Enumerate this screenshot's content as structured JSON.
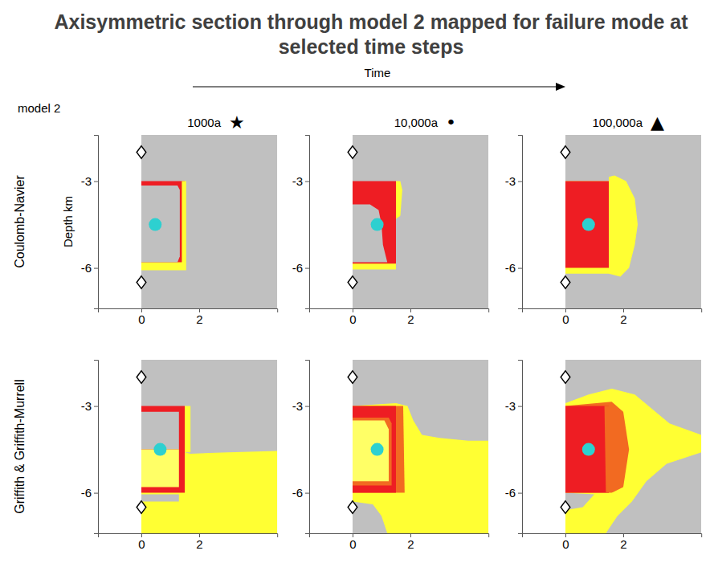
{
  "figure": {
    "title": "Axisymmetric section through model 2 mapped for failure mode at selected time steps",
    "time_label": "Time",
    "model_label": "model 2",
    "columns": [
      {
        "label": "1000a",
        "symbol": "★"
      },
      {
        "label": "10,000a",
        "symbol": "•"
      },
      {
        "label": "100,000a",
        "symbol": "▲"
      }
    ],
    "rows": [
      "Coulomb-Navier",
      "Griffith & Griffith-Murrell"
    ]
  },
  "chart_data": [
    {
      "type": "region_map",
      "ylabel": "Depth km",
      "xlim": [
        -1.5,
        4.7
      ],
      "ylim": [
        -7.4,
        -1.4
      ],
      "xticks": [
        0,
        2
      ],
      "yticks": [
        -3,
        -6
      ],
      "regions": [
        {
          "color": "#c0c0c0",
          "points": [
            [
              0,
              -7.4
            ],
            [
              4.7,
              -7.4
            ],
            [
              4.7,
              -1.4
            ],
            [
              0,
              -1.4
            ]
          ]
        },
        {
          "color": "#ee1d23",
          "points": [
            [
              0,
              -3
            ],
            [
              1.5,
              -3
            ],
            [
              1.5,
              -6
            ],
            [
              0,
              -6
            ]
          ]
        },
        {
          "color": "#ffff33",
          "points": [
            [
              1.4,
              -3
            ],
            [
              1.55,
              -3
            ],
            [
              1.55,
              -6.08
            ],
            [
              0,
              -6.08
            ],
            [
              0,
              -5.8
            ],
            [
              1.4,
              -5.8
            ]
          ]
        },
        {
          "color": "#c0c0c0",
          "points": [
            [
              0,
              -3.15
            ],
            [
              1.25,
              -3.15
            ],
            [
              1.33,
              -3.3
            ],
            [
              1.33,
              -5.6
            ],
            [
              1.25,
              -5.8
            ],
            [
              0,
              -5.8
            ]
          ]
        }
      ],
      "markers": [
        [
          0,
          -2.0
        ],
        [
          0,
          -6.5
        ]
      ],
      "dot": [
        0.48,
        -4.5
      ]
    },
    {
      "type": "region_map",
      "xlim": [
        -1.5,
        4.7
      ],
      "ylim": [
        -7.4,
        -1.4
      ],
      "xticks": [
        0,
        2
      ],
      "yticks": [
        -3,
        -6
      ],
      "regions": [
        {
          "color": "#c0c0c0",
          "points": [
            [
              0,
              -7.4
            ],
            [
              4.7,
              -7.4
            ],
            [
              4.7,
              -1.4
            ],
            [
              0,
              -1.4
            ]
          ]
        },
        {
          "color": "#ffff33",
          "points": [
            [
              1.5,
              -3
            ],
            [
              1.65,
              -3
            ],
            [
              1.72,
              -3.3
            ],
            [
              1.65,
              -4.2
            ],
            [
              1.5,
              -4.3
            ]
          ]
        },
        {
          "color": "#ee1d23",
          "points": [
            [
              0,
              -3
            ],
            [
              1.5,
              -3
            ],
            [
              1.5,
              -6
            ],
            [
              0,
              -6
            ]
          ]
        },
        {
          "color": "#c0c0c0",
          "points": [
            [
              0,
              -3.8
            ],
            [
              0.6,
              -3.8
            ],
            [
              0.9,
              -4.0
            ],
            [
              1.0,
              -4.5
            ],
            [
              1.05,
              -5.2
            ],
            [
              1.2,
              -5.8
            ],
            [
              0,
              -5.8
            ]
          ]
        },
        {
          "color": "#ffff33",
          "points": [
            [
              0,
              -5.85
            ],
            [
              1.5,
              -5.85
            ],
            [
              1.5,
              -6.05
            ],
            [
              0,
              -6.05
            ]
          ]
        }
      ],
      "markers": [
        [
          0,
          -2.0
        ],
        [
          0,
          -6.5
        ]
      ],
      "dot": [
        0.85,
        -4.5
      ]
    },
    {
      "type": "region_map",
      "xlim": [
        -1.5,
        4.7
      ],
      "ylim": [
        -7.4,
        -1.4
      ],
      "xticks": [
        0,
        2
      ],
      "yticks": [
        -3,
        -6
      ],
      "regions": [
        {
          "color": "#c0c0c0",
          "points": [
            [
              0,
              -7.4
            ],
            [
              4.7,
              -7.4
            ],
            [
              4.7,
              -1.4
            ],
            [
              0,
              -1.4
            ]
          ]
        },
        {
          "color": "#ffff33",
          "points": [
            [
              0,
              -6.2
            ],
            [
              1.5,
              -6.2
            ],
            [
              1.9,
              -6.3
            ],
            [
              2.2,
              -6.0
            ],
            [
              2.4,
              -5.2
            ],
            [
              2.5,
              -4.5
            ],
            [
              2.4,
              -3.6
            ],
            [
              2.1,
              -3.0
            ],
            [
              1.7,
              -2.8
            ],
            [
              1.5,
              -2.85
            ],
            [
              1.5,
              -3
            ],
            [
              0,
              -3
            ]
          ]
        },
        {
          "color": "#ee1d23",
          "points": [
            [
              0,
              -3
            ],
            [
              1.5,
              -3
            ],
            [
              1.5,
              -6
            ],
            [
              0,
              -6
            ]
          ]
        }
      ],
      "markers": [
        [
          0,
          -2.0
        ],
        [
          0,
          -6.5
        ]
      ],
      "dot": [
        0.8,
        -4.5
      ]
    },
    {
      "type": "region_map",
      "xlim": [
        -1.5,
        4.7
      ],
      "ylim": [
        -7.4,
        -1.4
      ],
      "xticks": [
        0,
        2
      ],
      "yticks": [
        -3,
        -6
      ],
      "regions": [
        {
          "color": "#c0c0c0",
          "points": [
            [
              0,
              -7.4
            ],
            [
              4.7,
              -7.4
            ],
            [
              4.7,
              -1.4
            ],
            [
              0,
              -1.4
            ]
          ]
        },
        {
          "color": "#ffff33",
          "points": [
            [
              0,
              -4.6
            ],
            [
              1.5,
              -4.6
            ],
            [
              1.7,
              -4.65
            ],
            [
              3,
              -4.6
            ],
            [
              4.7,
              -4.55
            ],
            [
              4.7,
              -7.4
            ],
            [
              0,
              -7.4
            ]
          ]
        },
        {
          "color": "#c0c0c0",
          "points": [
            [
              0,
              -6.05
            ],
            [
              1.3,
              -6.05
            ],
            [
              1.3,
              -6.3
            ],
            [
              0,
              -6.3
            ]
          ]
        },
        {
          "color": "#ffff33",
          "points": [
            [
              1.5,
              -3
            ],
            [
              1.7,
              -3
            ],
            [
              1.7,
              -4.6
            ],
            [
              1.5,
              -4.6
            ]
          ]
        },
        {
          "color": "#ee1d23",
          "points": [
            [
              0,
              -3
            ],
            [
              1.5,
              -3
            ],
            [
              1.5,
              -6
            ],
            [
              0,
              -6
            ]
          ]
        },
        {
          "color": "#c0c0c0",
          "points": [
            [
              0,
              -3.2
            ],
            [
              1.3,
              -3.2
            ],
            [
              1.3,
              -4.5
            ],
            [
              0,
              -4.5
            ]
          ]
        },
        {
          "color": "#ffff66",
          "points": [
            [
              0,
              -4.5
            ],
            [
              1.3,
              -4.5
            ],
            [
              1.3,
              -5.8
            ],
            [
              0,
              -5.8
            ]
          ]
        }
      ],
      "markers": [
        [
          0,
          -2.0
        ],
        [
          0,
          -6.5
        ]
      ],
      "dot": [
        0.65,
        -4.5
      ]
    },
    {
      "type": "region_map",
      "xlim": [
        -1.5,
        4.7
      ],
      "ylim": [
        -7.4,
        -1.4
      ],
      "xticks": [
        0,
        2
      ],
      "yticks": [
        -3,
        -6
      ],
      "regions": [
        {
          "color": "#c0c0c0",
          "points": [
            [
              0,
              -7.4
            ],
            [
              4.7,
              -7.4
            ],
            [
              4.7,
              -1.4
            ],
            [
              0,
              -1.4
            ]
          ]
        },
        {
          "color": "#ffff33",
          "points": [
            [
              0,
              -3
            ],
            [
              1.5,
              -2.9
            ],
            [
              1.9,
              -3.0
            ],
            [
              2.1,
              -3.5
            ],
            [
              2.4,
              -4.0
            ],
            [
              3,
              -4.1
            ],
            [
              4,
              -4.2
            ],
            [
              4.7,
              -4.2
            ],
            [
              4.7,
              -7.4
            ],
            [
              1.2,
              -7.4
            ],
            [
              1.0,
              -6.8
            ],
            [
              0.7,
              -6.4
            ],
            [
              0,
              -6.3
            ]
          ]
        },
        {
          "color": "#f26a21",
          "points": [
            [
              0,
              -3
            ],
            [
              1.75,
              -3
            ],
            [
              1.8,
              -6
            ],
            [
              0,
              -6
            ]
          ]
        },
        {
          "color": "#ee1d23",
          "points": [
            [
              0,
              -3
            ],
            [
              1.5,
              -3
            ],
            [
              1.5,
              -6
            ],
            [
              0,
              -6
            ]
          ]
        },
        {
          "color": "#f26a21",
          "points": [
            [
              0,
              -3.4
            ],
            [
              1.25,
              -3.4
            ],
            [
              1.35,
              -3.6
            ],
            [
              1.35,
              -5.75
            ],
            [
              0,
              -5.75
            ]
          ]
        },
        {
          "color": "#ffff66",
          "points": [
            [
              0,
              -3.5
            ],
            [
              1.1,
              -3.5
            ],
            [
              1.25,
              -3.8
            ],
            [
              1.25,
              -5.6
            ],
            [
              0,
              -5.6
            ]
          ]
        }
      ],
      "markers": [
        [
          0,
          -2.0
        ],
        [
          0,
          -6.5
        ]
      ],
      "dot": [
        0.85,
        -4.5
      ]
    },
    {
      "type": "region_map",
      "xlim": [
        -1.5,
        4.7
      ],
      "ylim": [
        -7.4,
        -1.4
      ],
      "xticks": [
        0,
        2
      ],
      "yticks": [
        -3,
        -6
      ],
      "regions": [
        {
          "color": "#c0c0c0",
          "points": [
            [
              0,
              -7.4
            ],
            [
              4.7,
              -7.4
            ],
            [
              4.7,
              -1.4
            ],
            [
              0,
              -1.4
            ]
          ]
        },
        {
          "color": "#ffff33",
          "points": [
            [
              0,
              -2.9
            ],
            [
              0.8,
              -2.6
            ],
            [
              1.6,
              -2.4
            ],
            [
              2.4,
              -2.6
            ],
            [
              3.0,
              -3.1
            ],
            [
              3.6,
              -3.6
            ],
            [
              4.7,
              -4.0
            ],
            [
              4.7,
              -4.6
            ],
            [
              3.5,
              -5.0
            ],
            [
              2.8,
              -5.6
            ],
            [
              2.3,
              -6.3
            ],
            [
              1.8,
              -6.8
            ],
            [
              1.4,
              -7.4
            ],
            [
              0,
              -7.4
            ],
            [
              0,
              -6.0
            ]
          ]
        },
        {
          "color": "#c0c0c0",
          "points": [
            [
              0,
              -6.0
            ],
            [
              1.0,
              -6.05
            ],
            [
              0.6,
              -6.5
            ],
            [
              0,
              -6.6
            ]
          ]
        },
        {
          "color": "#f26a21",
          "points": [
            [
              0,
              -3
            ],
            [
              1.6,
              -2.85
            ],
            [
              2.0,
              -3.2
            ],
            [
              2.2,
              -4.5
            ],
            [
              2.0,
              -5.8
            ],
            [
              1.6,
              -6.0
            ],
            [
              0,
              -6
            ]
          ]
        },
        {
          "color": "#ee1d23",
          "points": [
            [
              0,
              -3
            ],
            [
              1.5,
              -3
            ],
            [
              1.5,
              -6
            ],
            [
              0,
              -6
            ]
          ]
        },
        {
          "color": "#f26a21",
          "points": [
            [
              1.35,
              -3
            ],
            [
              1.5,
              -3
            ],
            [
              1.5,
              -6
            ],
            [
              1.4,
              -6
            ]
          ]
        }
      ],
      "markers": [
        [
          0,
          -2.0
        ],
        [
          0,
          -6.5
        ]
      ],
      "dot": [
        0.8,
        -4.5
      ]
    }
  ]
}
